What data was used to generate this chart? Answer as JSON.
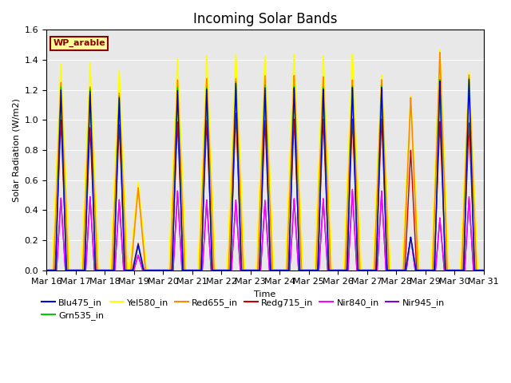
{
  "title": "Incoming Solar Bands",
  "xlabel": "Time",
  "ylabel": "Solar Radiation (W/m2)",
  "annotation": "WP_arable",
  "ylim": [
    0,
    1.6
  ],
  "x_tick_labels": [
    "Mar 16",
    "Mar 17",
    "Mar 18",
    "Mar 19",
    "Mar 20",
    "Mar 21",
    "Mar 22",
    "Mar 23",
    "Mar 24",
    "Mar 25",
    "Mar 26",
    "Mar 27",
    "Mar 28",
    "Mar 29",
    "Mar 30",
    "Mar 31"
  ],
  "series_order": [
    "Blu475_in",
    "Grn535_in",
    "Yel580_in",
    "Red655_in",
    "Redg715_in",
    "Nir840_in",
    "Nir945_in"
  ],
  "series_colors": {
    "Blu475_in": "#0000dd",
    "Grn535_in": "#00cc00",
    "Yel580_in": "#ffff00",
    "Red655_in": "#ff8800",
    "Redg715_in": "#cc0000",
    "Nir840_in": "#ff00ff",
    "Nir945_in": "#8800cc"
  },
  "series_lw": {
    "Blu475_in": 1.0,
    "Grn535_in": 1.0,
    "Yel580_in": 1.2,
    "Red655_in": 1.2,
    "Redg715_in": 1.0,
    "Nir840_in": 1.0,
    "Nir945_in": 1.0
  },
  "peak_centers": [
    0.5,
    1.5,
    2.5,
    3.15,
    4.5,
    5.5,
    6.5,
    7.5,
    8.5,
    9.5,
    10.5,
    11.5,
    12.5,
    13.5,
    14.5
  ],
  "peak_heights": {
    "Yel580_in": [
      1.37,
      1.38,
      1.33,
      0.59,
      1.41,
      1.43,
      1.44,
      1.43,
      1.44,
      1.43,
      1.44,
      1.3,
      1.16,
      1.47,
      1.32
    ],
    "Red655_in": [
      1.25,
      1.22,
      1.18,
      0.55,
      1.27,
      1.28,
      1.28,
      1.3,
      1.3,
      1.29,
      1.27,
      1.27,
      1.15,
      1.45,
      1.3
    ],
    "Redg715_in": [
      1.0,
      0.95,
      0.97,
      0.18,
      0.99,
      1.0,
      1.05,
      1.0,
      1.01,
      1.01,
      1.01,
      1.01,
      0.8,
      0.99,
      0.98
    ],
    "Blu475_in": [
      1.2,
      1.19,
      1.15,
      0.17,
      1.2,
      1.21,
      1.25,
      1.22,
      1.22,
      1.21,
      1.22,
      1.22,
      0.22,
      1.26,
      1.27
    ],
    "Grn535_in": [
      1.22,
      1.21,
      1.16,
      0.17,
      1.22,
      1.22,
      1.26,
      1.24,
      1.23,
      1.22,
      1.23,
      1.23,
      0.22,
      1.27,
      1.28
    ],
    "Nir840_in": [
      0.48,
      0.49,
      0.47,
      0.1,
      0.53,
      0.47,
      0.47,
      0.47,
      0.48,
      0.48,
      0.54,
      0.53,
      0.22,
      0.35,
      0.49
    ],
    "Nir945_in": [
      0.48,
      0.49,
      0.47,
      0.1,
      0.53,
      0.47,
      0.47,
      0.46,
      0.47,
      0.47,
      0.53,
      0.52,
      0.22,
      0.34,
      0.48
    ]
  },
  "peak_half_widths": {
    "Yel580_in": 0.3,
    "Red655_in": 0.25,
    "Redg715_in": 0.2,
    "Blu475_in": 0.18,
    "Grn535_in": 0.18,
    "Nir840_in": 0.15,
    "Nir945_in": 0.15
  },
  "background_color": "#e8e8e8",
  "legend_fontsize": 8,
  "title_fontsize": 12
}
